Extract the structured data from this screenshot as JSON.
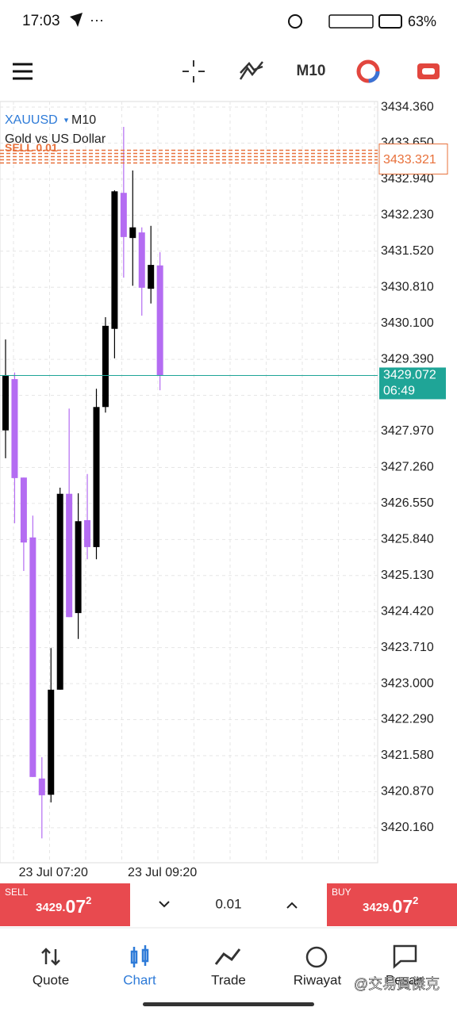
{
  "status_bar": {
    "time": "17:03",
    "battery": "63%"
  },
  "chart_data": {
    "type": "candlestick",
    "symbol": "XAUUSD",
    "timeframe": "M10",
    "subtitle": "Gold vs US Dollar",
    "categories": [
      null,
      null,
      null,
      null,
      null,
      "23 Jul 07:20",
      null,
      null,
      null,
      null,
      null,
      null,
      null,
      null,
      null,
      null,
      null,
      "23 Jul 09:20"
    ],
    "open": [
      3427.99,
      3429.0,
      3427.06,
      3425.88,
      3421.13,
      3420.81,
      3422.88,
      3426.74,
      3424.39,
      3426.22,
      3425.69,
      3428.45,
      3429.99,
      3432.67,
      3431.78,
      3431.89,
      3430.78,
      3431.24
    ],
    "high": [
      3429.78,
      3429.13,
      3427.06,
      3426.31,
      3421.55,
      3423.7,
      3426.86,
      3428.42,
      3426.75,
      3427.13,
      3428.81,
      3430.22,
      3432.72,
      3433.97,
      3433.11,
      3431.99,
      3432.02,
      3431.5
    ],
    "low": [
      3427.44,
      3426.16,
      3425.22,
      3421.16,
      3419.95,
      3420.66,
      3422.88,
      3424.31,
      3423.88,
      3425.45,
      3425.45,
      3428.34,
      3429.41,
      3431.0,
      3430.84,
      3430.25,
      3430.49,
      3428.78
    ],
    "close": [
      3429.08,
      3427.05,
      3425.78,
      3421.16,
      3420.8,
      3422.88,
      3426.74,
      3424.31,
      3426.2,
      3425.69,
      3428.45,
      3430.05,
      3432.7,
      3431.8,
      3431.99,
      3430.8,
      3431.25,
      3429.072
    ],
    "up_color": "#000000",
    "down_color": "#b46cf2",
    "ylim": [
      3419.47,
      3434.47
    ],
    "yticks": [
      {
        "value": 3434.36,
        "label": "3434.360"
      },
      {
        "value": 3433.65,
        "label": "3433.650"
      },
      {
        "value": 3432.94,
        "label": "3432.940"
      },
      {
        "value": 3432.23,
        "label": "3432.230"
      },
      {
        "value": 3431.52,
        "label": "3431.520"
      },
      {
        "value": 3430.81,
        "label": "3430.810"
      },
      {
        "value": 3430.1,
        "label": "3430.100"
      },
      {
        "value": 3429.39,
        "label": "3429.390"
      },
      {
        "value": 3428.68,
        "label": "3428.680"
      },
      {
        "value": 3427.97,
        "label": "3427.970"
      },
      {
        "value": 3427.26,
        "label": "3427.260"
      },
      {
        "value": 3426.55,
        "label": "3426.550"
      },
      {
        "value": 3425.84,
        "label": "3425.840"
      },
      {
        "value": 3425.13,
        "label": "3425.130"
      },
      {
        "value": 3424.42,
        "label": "3424.420"
      },
      {
        "value": 3423.71,
        "label": "3423.710"
      },
      {
        "value": 3423,
        "label": "3423.000"
      },
      {
        "value": 3422.29,
        "label": "3422.290"
      },
      {
        "value": 3421.58,
        "label": "3421.580"
      },
      {
        "value": 3420.87,
        "label": "3420.870"
      },
      {
        "value": 3420.16,
        "label": "3420.160"
      }
    ],
    "grid": true,
    "current_price": 3429.072,
    "countdown": "06:49",
    "current_color": "#1fa597",
    "sell_order_label": "SELL 0.01",
    "sell_order_price": 3433.321,
    "order_color": "#e8703a"
  },
  "trade_panel": {
    "sell_label": "SELL",
    "sell_price": {
      "prefix": "3429.",
      "big": "07",
      "sup": "2"
    },
    "lot": "0.01",
    "buy_label": "BUY",
    "buy_price": {
      "prefix": "3429.",
      "big": "07",
      "sup": "2"
    }
  },
  "nav": [
    "Quote",
    "Chart",
    "Trade",
    "Riwayat",
    "Pesan"
  ],
  "watermark": "@交易員傑克"
}
